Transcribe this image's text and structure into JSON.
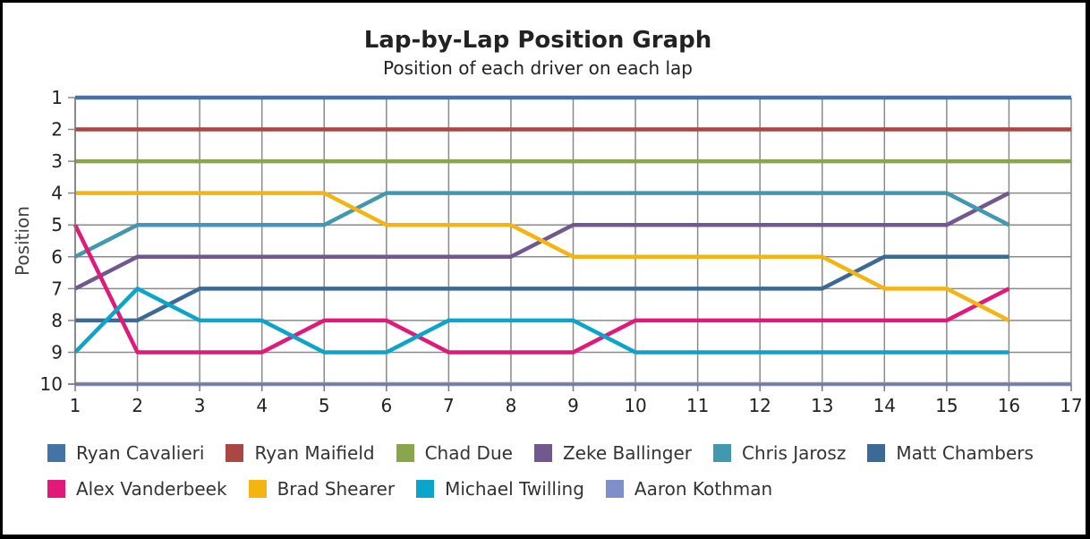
{
  "chart_data": {
    "type": "line",
    "title": "Lap-by-Lap Position Graph",
    "subtitle": "Position of each driver on each lap",
    "xlabel": "",
    "ylabel": "Position",
    "x": [
      1,
      2,
      3,
      4,
      5,
      6,
      7,
      8,
      9,
      10,
      11,
      12,
      13,
      14,
      15,
      16
    ],
    "xlim": [
      1,
      17
    ],
    "ylim": [
      1,
      10
    ],
    "y_inverted": true,
    "x_ticks": [
      1,
      2,
      3,
      4,
      5,
      6,
      7,
      8,
      9,
      10,
      11,
      12,
      13,
      14,
      15,
      16,
      17
    ],
    "y_ticks": [
      1,
      2,
      3,
      4,
      5,
      6,
      7,
      8,
      9,
      10
    ],
    "grid": true,
    "legend_position": "bottom",
    "series": [
      {
        "name": "Ryan Cavalieri",
        "color": "#4572a7",
        "values": [
          1,
          1,
          1,
          1,
          1,
          1,
          1,
          1,
          1,
          1,
          1,
          1,
          1,
          1,
          1,
          1
        ],
        "extend_to_axis_end": true
      },
      {
        "name": "Ryan Maifield",
        "color": "#aa4643",
        "values": [
          2,
          2,
          2,
          2,
          2,
          2,
          2,
          2,
          2,
          2,
          2,
          2,
          2,
          2,
          2,
          2
        ],
        "extend_to_axis_end": true
      },
      {
        "name": "Chad Due",
        "color": "#89a54e",
        "values": [
          3,
          3,
          3,
          3,
          3,
          3,
          3,
          3,
          3,
          3,
          3,
          3,
          3,
          3,
          3,
          3
        ],
        "extend_to_axis_end": true
      },
      {
        "name": "Zeke Ballinger",
        "color": "#71588f",
        "values": [
          7,
          6,
          6,
          6,
          6,
          6,
          6,
          6,
          5,
          5,
          5,
          5,
          5,
          5,
          5,
          4
        ]
      },
      {
        "name": "Chris Jarosz",
        "color": "#4198af",
        "values": [
          6,
          5,
          5,
          5,
          5,
          4,
          4,
          4,
          4,
          4,
          4,
          4,
          4,
          4,
          4,
          5
        ]
      },
      {
        "name": "Matt Chambers",
        "color": "#3d6996",
        "values": [
          8,
          8,
          7,
          7,
          7,
          7,
          7,
          7,
          7,
          7,
          7,
          7,
          7,
          6,
          6,
          6
        ]
      },
      {
        "name": "Alex Vanderbeek",
        "color": "#e0197a",
        "values": [
          5,
          9,
          9,
          9,
          8,
          8,
          9,
          9,
          9,
          8,
          8,
          8,
          8,
          8,
          8,
          7
        ]
      },
      {
        "name": "Brad Shearer",
        "color": "#f4b412",
        "values": [
          4,
          4,
          4,
          4,
          4,
          5,
          5,
          5,
          6,
          6,
          6,
          6,
          6,
          7,
          7,
          8
        ]
      },
      {
        "name": "Michael Twilling",
        "color": "#0aa5c8",
        "values": [
          9,
          7,
          8,
          8,
          9,
          9,
          8,
          8,
          8,
          9,
          9,
          9,
          9,
          9,
          9,
          9
        ]
      },
      {
        "name": "Aaron Kothman",
        "color": "#7f8fcc",
        "values": [
          10,
          10,
          10,
          10,
          10,
          10,
          10,
          10,
          10,
          10,
          10,
          10,
          10,
          10,
          10,
          10
        ],
        "extend_to_axis_end": true
      }
    ]
  }
}
